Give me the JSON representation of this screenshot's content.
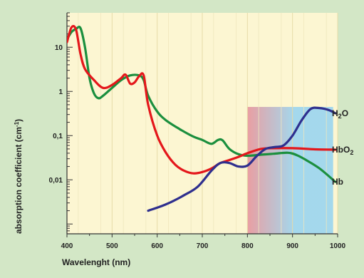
{
  "chart_data": {
    "type": "line",
    "title": "",
    "xlabel": "Wavelenght (nm)",
    "ylabel": "absorption coefficient (cm",
    "ylabel_sup": "-1",
    "ylabel_close": ")",
    "xlim": [
      400,
      1000
    ],
    "ylim": [
      0.0006,
      60
    ],
    "y_scale": "log",
    "grid": true,
    "legend": "labels at right end of each series",
    "x_ticks": [
      {
        "value": 400,
        "label": "400"
      },
      {
        "value": 500,
        "label": "500"
      },
      {
        "value": 600,
        "label": "600"
      },
      {
        "value": 700,
        "label": "700"
      },
      {
        "value": 800,
        "label": "800"
      },
      {
        "value": 900,
        "label": "900"
      },
      {
        "value": 1000,
        "label": "1000"
      }
    ],
    "y_ticks": [
      {
        "value": 10,
        "label": "10"
      },
      {
        "value": 1,
        "label": "1"
      },
      {
        "value": 0.1,
        "label": "0,1"
      },
      {
        "value": 0.01,
        "label": "0,01"
      }
    ],
    "highlight_band": {
      "x_start": 800,
      "x_end": 990,
      "colors": [
        "#e89aa0",
        "#9fd6ee"
      ]
    },
    "series": [
      {
        "name": "H2O",
        "label_base": "H",
        "label_sub": "2",
        "label_tail": "O",
        "color": "#2e2f8e",
        "points": [
          [
            580,
            0.002
          ],
          [
            620,
            0.0028
          ],
          [
            660,
            0.0045
          ],
          [
            690,
            0.007
          ],
          [
            720,
            0.016
          ],
          [
            740,
            0.024
          ],
          [
            760,
            0.024
          ],
          [
            780,
            0.02
          ],
          [
            800,
            0.021
          ],
          [
            820,
            0.034
          ],
          [
            840,
            0.05
          ],
          [
            860,
            0.055
          ],
          [
            880,
            0.06
          ],
          [
            900,
            0.1
          ],
          [
            920,
            0.22
          ],
          [
            940,
            0.4
          ],
          [
            960,
            0.42
          ],
          [
            980,
            0.38
          ],
          [
            995,
            0.32
          ]
        ]
      },
      {
        "name": "HbO2",
        "label_base": "HbO",
        "label_sub": "2",
        "label_tail": "",
        "color": "#e4171b",
        "points": [
          [
            400,
            13
          ],
          [
            410,
            28
          ],
          [
            420,
            25
          ],
          [
            430,
            7
          ],
          [
            440,
            3.2
          ],
          [
            460,
            1.8
          ],
          [
            480,
            1.2
          ],
          [
            500,
            1.4
          ],
          [
            520,
            2
          ],
          [
            530,
            2.4
          ],
          [
            540,
            1.5
          ],
          [
            550,
            1.6
          ],
          [
            560,
            2.2
          ],
          [
            570,
            2.3
          ],
          [
            580,
            0.5
          ],
          [
            600,
            0.1
          ],
          [
            620,
            0.04
          ],
          [
            640,
            0.022
          ],
          [
            660,
            0.016
          ],
          [
            680,
            0.014
          ],
          [
            700,
            0.015
          ],
          [
            720,
            0.018
          ],
          [
            740,
            0.024
          ],
          [
            760,
            0.028
          ],
          [
            780,
            0.033
          ],
          [
            800,
            0.04
          ],
          [
            830,
            0.05
          ],
          [
            860,
            0.052
          ],
          [
            900,
            0.052
          ],
          [
            950,
            0.049
          ],
          [
            995,
            0.048
          ]
        ]
      },
      {
        "name": "Hb",
        "label_base": "Hb",
        "label_sub": "",
        "label_tail": "",
        "color": "#1b8f3e",
        "points": [
          [
            400,
            15
          ],
          [
            410,
            22
          ],
          [
            420,
            26
          ],
          [
            430,
            27
          ],
          [
            440,
            10
          ],
          [
            450,
            2
          ],
          [
            460,
            0.9
          ],
          [
            470,
            0.7
          ],
          [
            480,
            0.8
          ],
          [
            500,
            1.2
          ],
          [
            520,
            1.8
          ],
          [
            540,
            2.3
          ],
          [
            560,
            2.3
          ],
          [
            570,
            1.8
          ],
          [
            580,
            0.8
          ],
          [
            600,
            0.35
          ],
          [
            620,
            0.22
          ],
          [
            650,
            0.14
          ],
          [
            680,
            0.095
          ],
          [
            700,
            0.08
          ],
          [
            720,
            0.065
          ],
          [
            735,
            0.08
          ],
          [
            745,
            0.078
          ],
          [
            760,
            0.05
          ],
          [
            780,
            0.038
          ],
          [
            800,
            0.035
          ],
          [
            830,
            0.037
          ],
          [
            860,
            0.039
          ],
          [
            890,
            0.041
          ],
          [
            910,
            0.036
          ],
          [
            930,
            0.028
          ],
          [
            960,
            0.018
          ],
          [
            995,
            0.009
          ]
        ]
      }
    ]
  }
}
